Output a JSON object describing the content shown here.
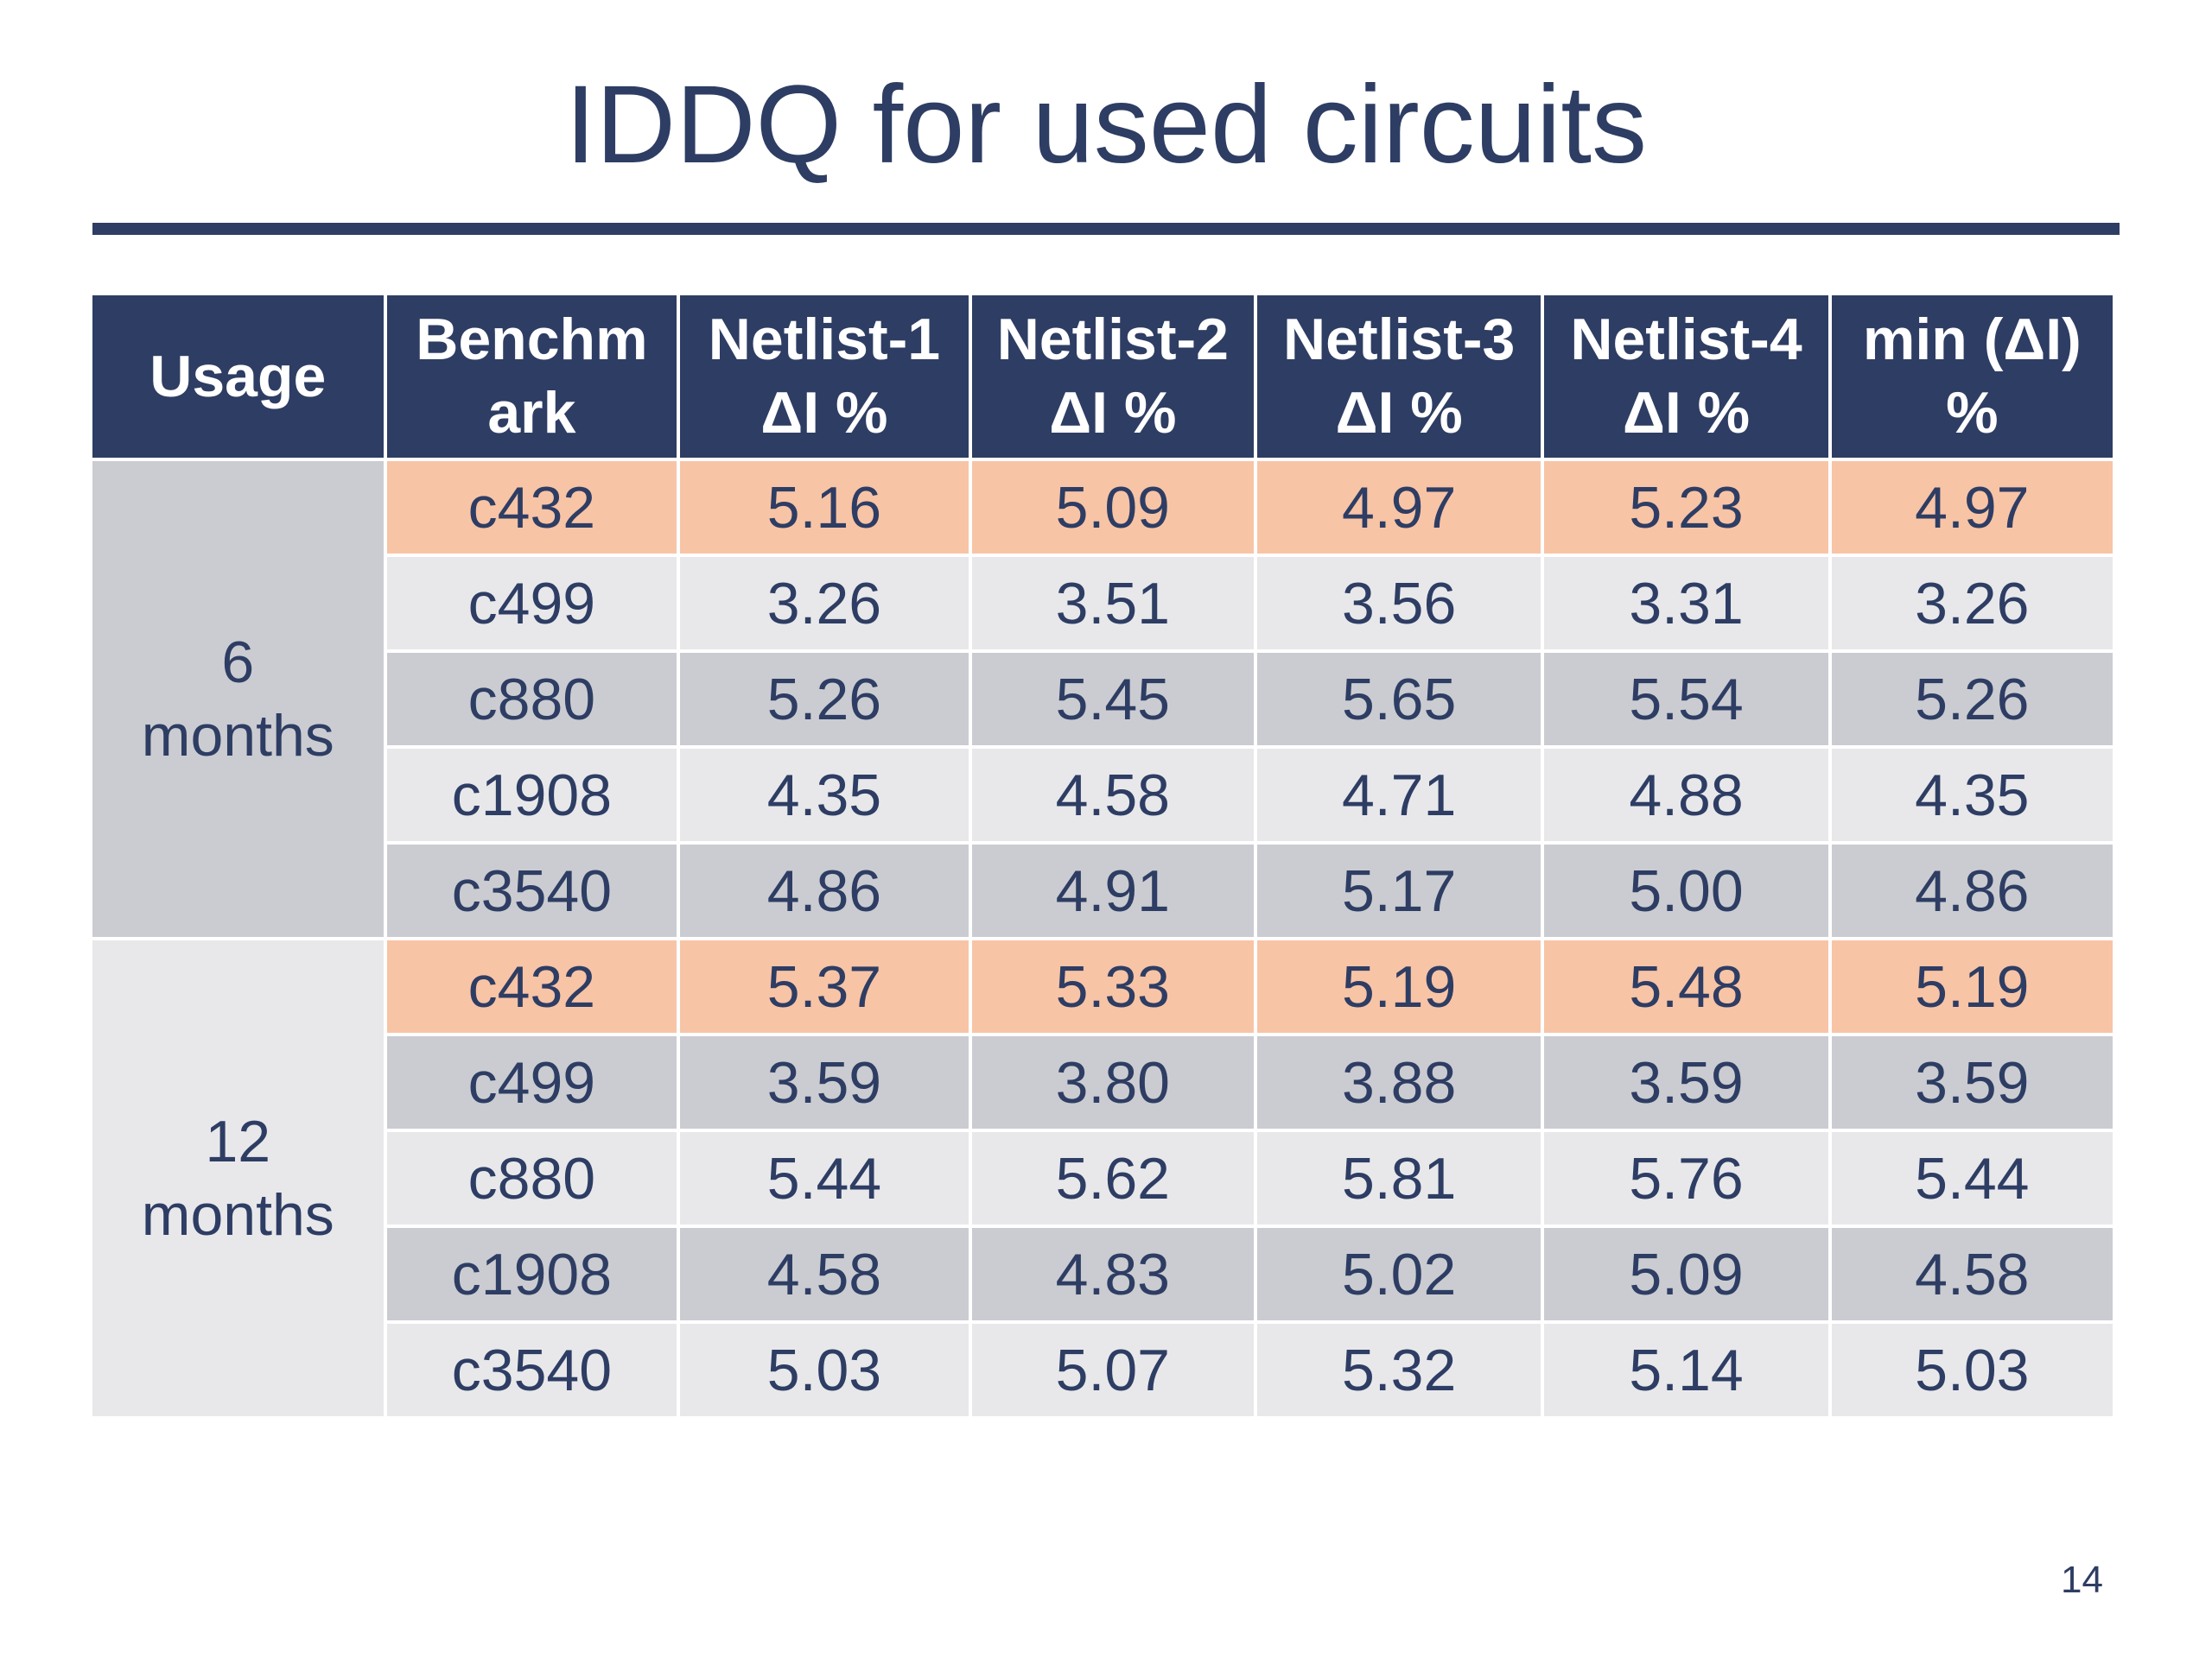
{
  "slide": {
    "title": "IDDQ for used circuits",
    "page_number": "14"
  },
  "colors": {
    "header_bg": "#2e3d63",
    "text": "#2e3d63",
    "highlight_row": "#f8c4a6",
    "row_light": "#e8e8eb",
    "row_dark": "#cbccd1"
  },
  "table": {
    "headers": [
      {
        "line1": "Usage",
        "line2": ""
      },
      {
        "line1": "Benchm",
        "line2": "ark"
      },
      {
        "line1": "Netlist-1",
        "line2": "ΔI %"
      },
      {
        "line1": "Netlist-2",
        "line2": "ΔI %"
      },
      {
        "line1": "Netlist-3",
        "line2": "ΔI %"
      },
      {
        "line1": "Netlist-4",
        "line2": "ΔI %"
      },
      {
        "line1": "min (ΔI)",
        "line2": "%"
      }
    ],
    "groups": [
      {
        "usage_line1": "6",
        "usage_line2": "months",
        "rows": [
          {
            "benchmark": "c432",
            "n1": "5.16",
            "n2": "5.09",
            "n3": "4.97",
            "n4": "5.23",
            "min": "4.97",
            "highlighted": true
          },
          {
            "benchmark": "c499",
            "n1": "3.26",
            "n2": "3.51",
            "n3": "3.56",
            "n4": "3.31",
            "min": "3.26"
          },
          {
            "benchmark": "c880",
            "n1": "5.26",
            "n2": "5.45",
            "n3": "5.65",
            "n4": "5.54",
            "min": "5.26"
          },
          {
            "benchmark": "c1908",
            "n1": "4.35",
            "n2": "4.58",
            "n3": "4.71",
            "n4": "4.88",
            "min": "4.35"
          },
          {
            "benchmark": "c3540",
            "n1": "4.86",
            "n2": "4.91",
            "n3": "5.17",
            "n4": "5.00",
            "min": "4.86"
          }
        ]
      },
      {
        "usage_line1": "12",
        "usage_line2": "months",
        "rows": [
          {
            "benchmark": "c432",
            "n1": "5.37",
            "n2": "5.33",
            "n3": "5.19",
            "n4": "5.48",
            "min": "5.19",
            "highlighted": true
          },
          {
            "benchmark": "c499",
            "n1": "3.59",
            "n2": "3.80",
            "n3": "3.88",
            "n4": "3.59",
            "min": "3.59"
          },
          {
            "benchmark": "c880",
            "n1": "5.44",
            "n2": "5.62",
            "n3": "5.81",
            "n4": "5.76",
            "min": "5.44"
          },
          {
            "benchmark": "c1908",
            "n1": "4.58",
            "n2": "4.83",
            "n3": "5.02",
            "n4": "5.09",
            "min": "4.58"
          },
          {
            "benchmark": "c3540",
            "n1": "5.03",
            "n2": "5.07",
            "n3": "5.32",
            "n4": "5.14",
            "min": "5.03"
          }
        ]
      }
    ]
  }
}
